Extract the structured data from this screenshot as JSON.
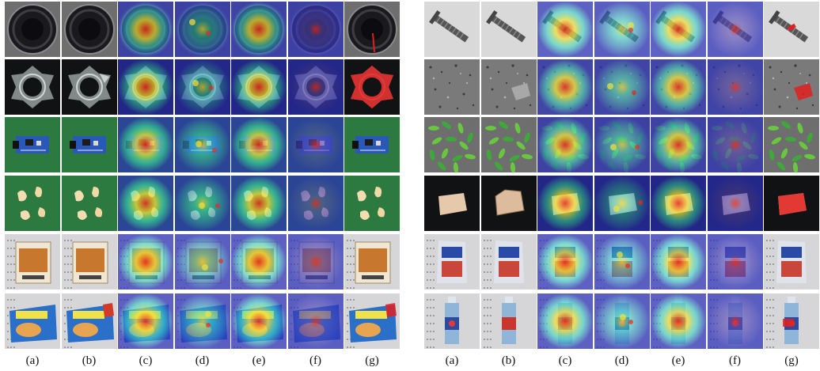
{
  "figure": {
    "panels": [
      {
        "name": "left",
        "column_labels": [
          "(a)",
          "(b)",
          "(c)",
          "(d)",
          "(e)",
          "(f)",
          "(g)"
        ],
        "rows": [
          {
            "object": "round-lens",
            "background": "gray"
          },
          {
            "object": "clear-ring-part",
            "background": "black"
          },
          {
            "object": "circuit-board",
            "background": "green"
          },
          {
            "object": "cashew-nuts",
            "background": "green"
          },
          {
            "object": "food-box",
            "background": "shelf"
          },
          {
            "object": "noodle-bag",
            "background": "shelf"
          }
        ]
      },
      {
        "name": "right",
        "column_labels": [
          "(a)",
          "(b)",
          "(c)",
          "(d)",
          "(e)",
          "(f)",
          "(g)"
        ],
        "rows": [
          {
            "object": "screw",
            "background": "light-gray"
          },
          {
            "object": "speckled-tile",
            "background": "gray"
          },
          {
            "object": "green-beans",
            "background": "gray"
          },
          {
            "object": "foam-block",
            "background": "black"
          },
          {
            "object": "snack-bag",
            "background": "shelf"
          },
          {
            "object": "drink-bottle",
            "background": "shelf"
          }
        ]
      }
    ],
    "column_roles": [
      "input",
      "anomaly",
      "heatmap-broad",
      "heatmap-sparse",
      "heatmap-broad",
      "heatmap-focused",
      "mask"
    ],
    "colors": {
      "mask": "#e02020",
      "heat_base": "#2a2fb8",
      "heat_hot": "#e82a1c"
    }
  }
}
